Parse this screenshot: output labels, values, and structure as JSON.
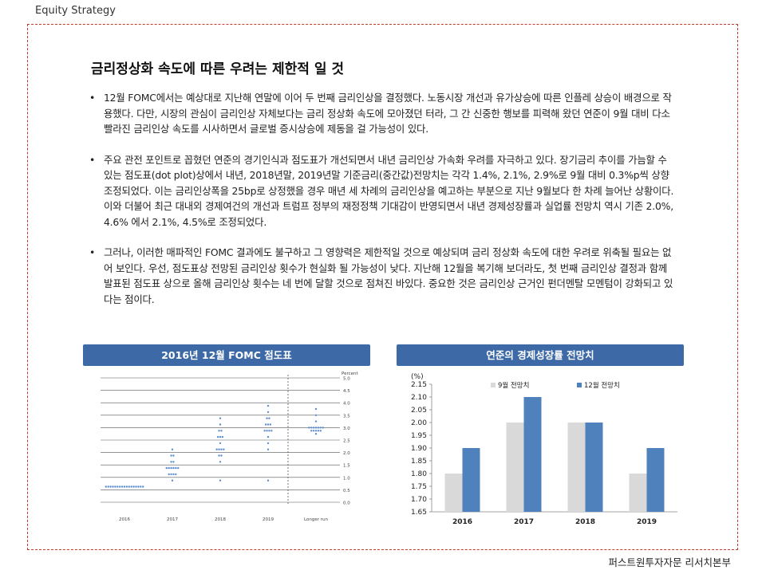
{
  "header": {
    "label": "Equity Strategy"
  },
  "title": "금리정상화 속도에 따른 우려는 제한적 일 것",
  "bullets": [
    "12월 FOMC에서는 예상대로 지난해 연말에 이어 두 번째 금리인상을 결정했다. 노동시장 개선과 유가상승에 따른 인플레 상승이 배경으로 작용했다. 다만, 시장의 관심이 금리인상 자체보다는 금리 정상화 속도에 모아졌던 터라, 그 간 신중한 행보를 피력해 왔던 연준이 9월 대비 다소 빨라진 금리인상 속도를 시사하면서 글로벌 증시상승에 제동을 걸 가능성이 있다.",
    "주요 관전 포인트로 꼽혔던 연준의 경기인식과 점도표가 개선되면서 내년 금리인상 가속화 우려를 자극하고 있다. 장기금리 추이를 가늠할 수 있는 점도표(dot plot)상에서 내년, 2018년말, 2019년말 기준금리(중간값)전망치는 각각 1.4%, 2.1%, 2.9%로 9월 대비 0.3%p씩 상향 조정되었다. 이는 금리인상폭을 25bp로 상정했을 경우 매년 세 차례의 금리인상을 예고하는 부분으로 지난 9월보다 한 차례 늘어난 상황이다. 이와 더불어 최근 대내외 경제여건의 개선과 트럼프 정부의 재정정책 기대감이 반영되면서 내년 경제성장률과 실업률 전망치 역시 기존 2.0%, 4.6% 에서 2.1%, 4.5%로 조정되었다.",
    "그러나, 이러한 매파적인 FOMC 결과에도 불구하고 그 영향력은 제한적일 것으로 예상되며 금리 정상화 속도에 대한 우려로 위축될 필요는 없어 보인다. 우선, 점도표상 전망된 금리인상 횟수가 현실화 될 가능성이 낮다. 지난해 12월을 복기해 보더라도, 첫 번째 금리인상 결정과 함께 발표된 점도표 상으로 올해 금리인상 횟수는 네 번에 달할 것으로 점쳐진 바있다. 중요한 것은 금리인상 근거인 펀더멘탈 모멘텀이 강화되고 있다는 점이다."
  ],
  "left_panel": {
    "title": "2016년 12월 FOMC 점도표",
    "header_color": "#3d6aa6",
    "axis_title": "Percent",
    "chart_data": {
      "type": "scatter",
      "x_categories": [
        "2016",
        "2017",
        "2018",
        "2019",
        "Longer run"
      ],
      "y_ticks": [
        "0.0",
        "0.5",
        "1.0",
        "1.5",
        "2.0",
        "2.5",
        "3.0",
        "3.5",
        "4.0",
        "4.5",
        "5.0"
      ],
      "ylim": [
        0,
        5
      ],
      "dot_color": "#5b8ed0",
      "dots": [
        {
          "x": "2016",
          "y": 0.625,
          "count": 17
        },
        {
          "x": "2017",
          "y": 0.875,
          "count": 1
        },
        {
          "x": "2017",
          "y": 1.125,
          "count": 4
        },
        {
          "x": "2017",
          "y": 1.375,
          "count": 6
        },
        {
          "x": "2017",
          "y": 1.625,
          "count": 2
        },
        {
          "x": "2017",
          "y": 1.875,
          "count": 2
        },
        {
          "x": "2017",
          "y": 2.125,
          "count": 1
        },
        {
          "x": "2017",
          "y": 0.875,
          "count": 0
        },
        {
          "x": "2018",
          "y": 0.875,
          "count": 1
        },
        {
          "x": "2018",
          "y": 1.625,
          "count": 1
        },
        {
          "x": "2018",
          "y": 1.875,
          "count": 2
        },
        {
          "x": "2018",
          "y": 2.125,
          "count": 4
        },
        {
          "x": "2018",
          "y": 2.375,
          "count": 1
        },
        {
          "x": "2018",
          "y": 2.625,
          "count": 3
        },
        {
          "x": "2018",
          "y": 2.875,
          "count": 2
        },
        {
          "x": "2018",
          "y": 3.125,
          "count": 1
        },
        {
          "x": "2018",
          "y": 3.375,
          "count": 1
        },
        {
          "x": "2019",
          "y": 0.875,
          "count": 1
        },
        {
          "x": "2019",
          "y": 2.125,
          "count": 1
        },
        {
          "x": "2019",
          "y": 2.375,
          "count": 1
        },
        {
          "x": "2019",
          "y": 2.625,
          "count": 1
        },
        {
          "x": "2019",
          "y": 2.875,
          "count": 4
        },
        {
          "x": "2019",
          "y": 3.125,
          "count": 3
        },
        {
          "x": "2019",
          "y": 3.375,
          "count": 2
        },
        {
          "x": "2019",
          "y": 3.625,
          "count": 1
        },
        {
          "x": "2019",
          "y": 3.875,
          "count": 1
        },
        {
          "x": "Longer run",
          "y": 2.75,
          "count": 1
        },
        {
          "x": "Longer run",
          "y": 2.875,
          "count": 5
        },
        {
          "x": "Longer run",
          "y": 3.0,
          "count": 7
        },
        {
          "x": "Longer run",
          "y": 3.25,
          "count": 1
        },
        {
          "x": "Longer run",
          "y": 3.5,
          "count": 1
        },
        {
          "x": "Longer run",
          "y": 3.75,
          "count": 1
        }
      ]
    }
  },
  "right_panel": {
    "title": "연준의 경제성장률 전망치",
    "header_color": "#3d6aa6",
    "chart_data": {
      "type": "bar",
      "unit_label": "(%)",
      "categories": [
        "2016",
        "2017",
        "2018",
        "2019"
      ],
      "series": [
        {
          "name": "9월 전망치",
          "values": [
            1.8,
            2.0,
            2.0,
            1.8
          ],
          "color": "#d9d9d9"
        },
        {
          "name": "12월 전망치",
          "values": [
            1.9,
            2.1,
            2.0,
            1.9
          ],
          "color": "#4f81bd"
        }
      ],
      "ylim": [
        1.65,
        2.15
      ],
      "y_ticks": [
        "1.65",
        "1.70",
        "1.75",
        "1.80",
        "1.85",
        "1.90",
        "1.95",
        "2.00",
        "2.05",
        "2.10",
        "2.15"
      ],
      "legend_position": "top",
      "grid": false
    }
  },
  "footer": {
    "label": "퍼스트원투자자문 리서치본부"
  }
}
